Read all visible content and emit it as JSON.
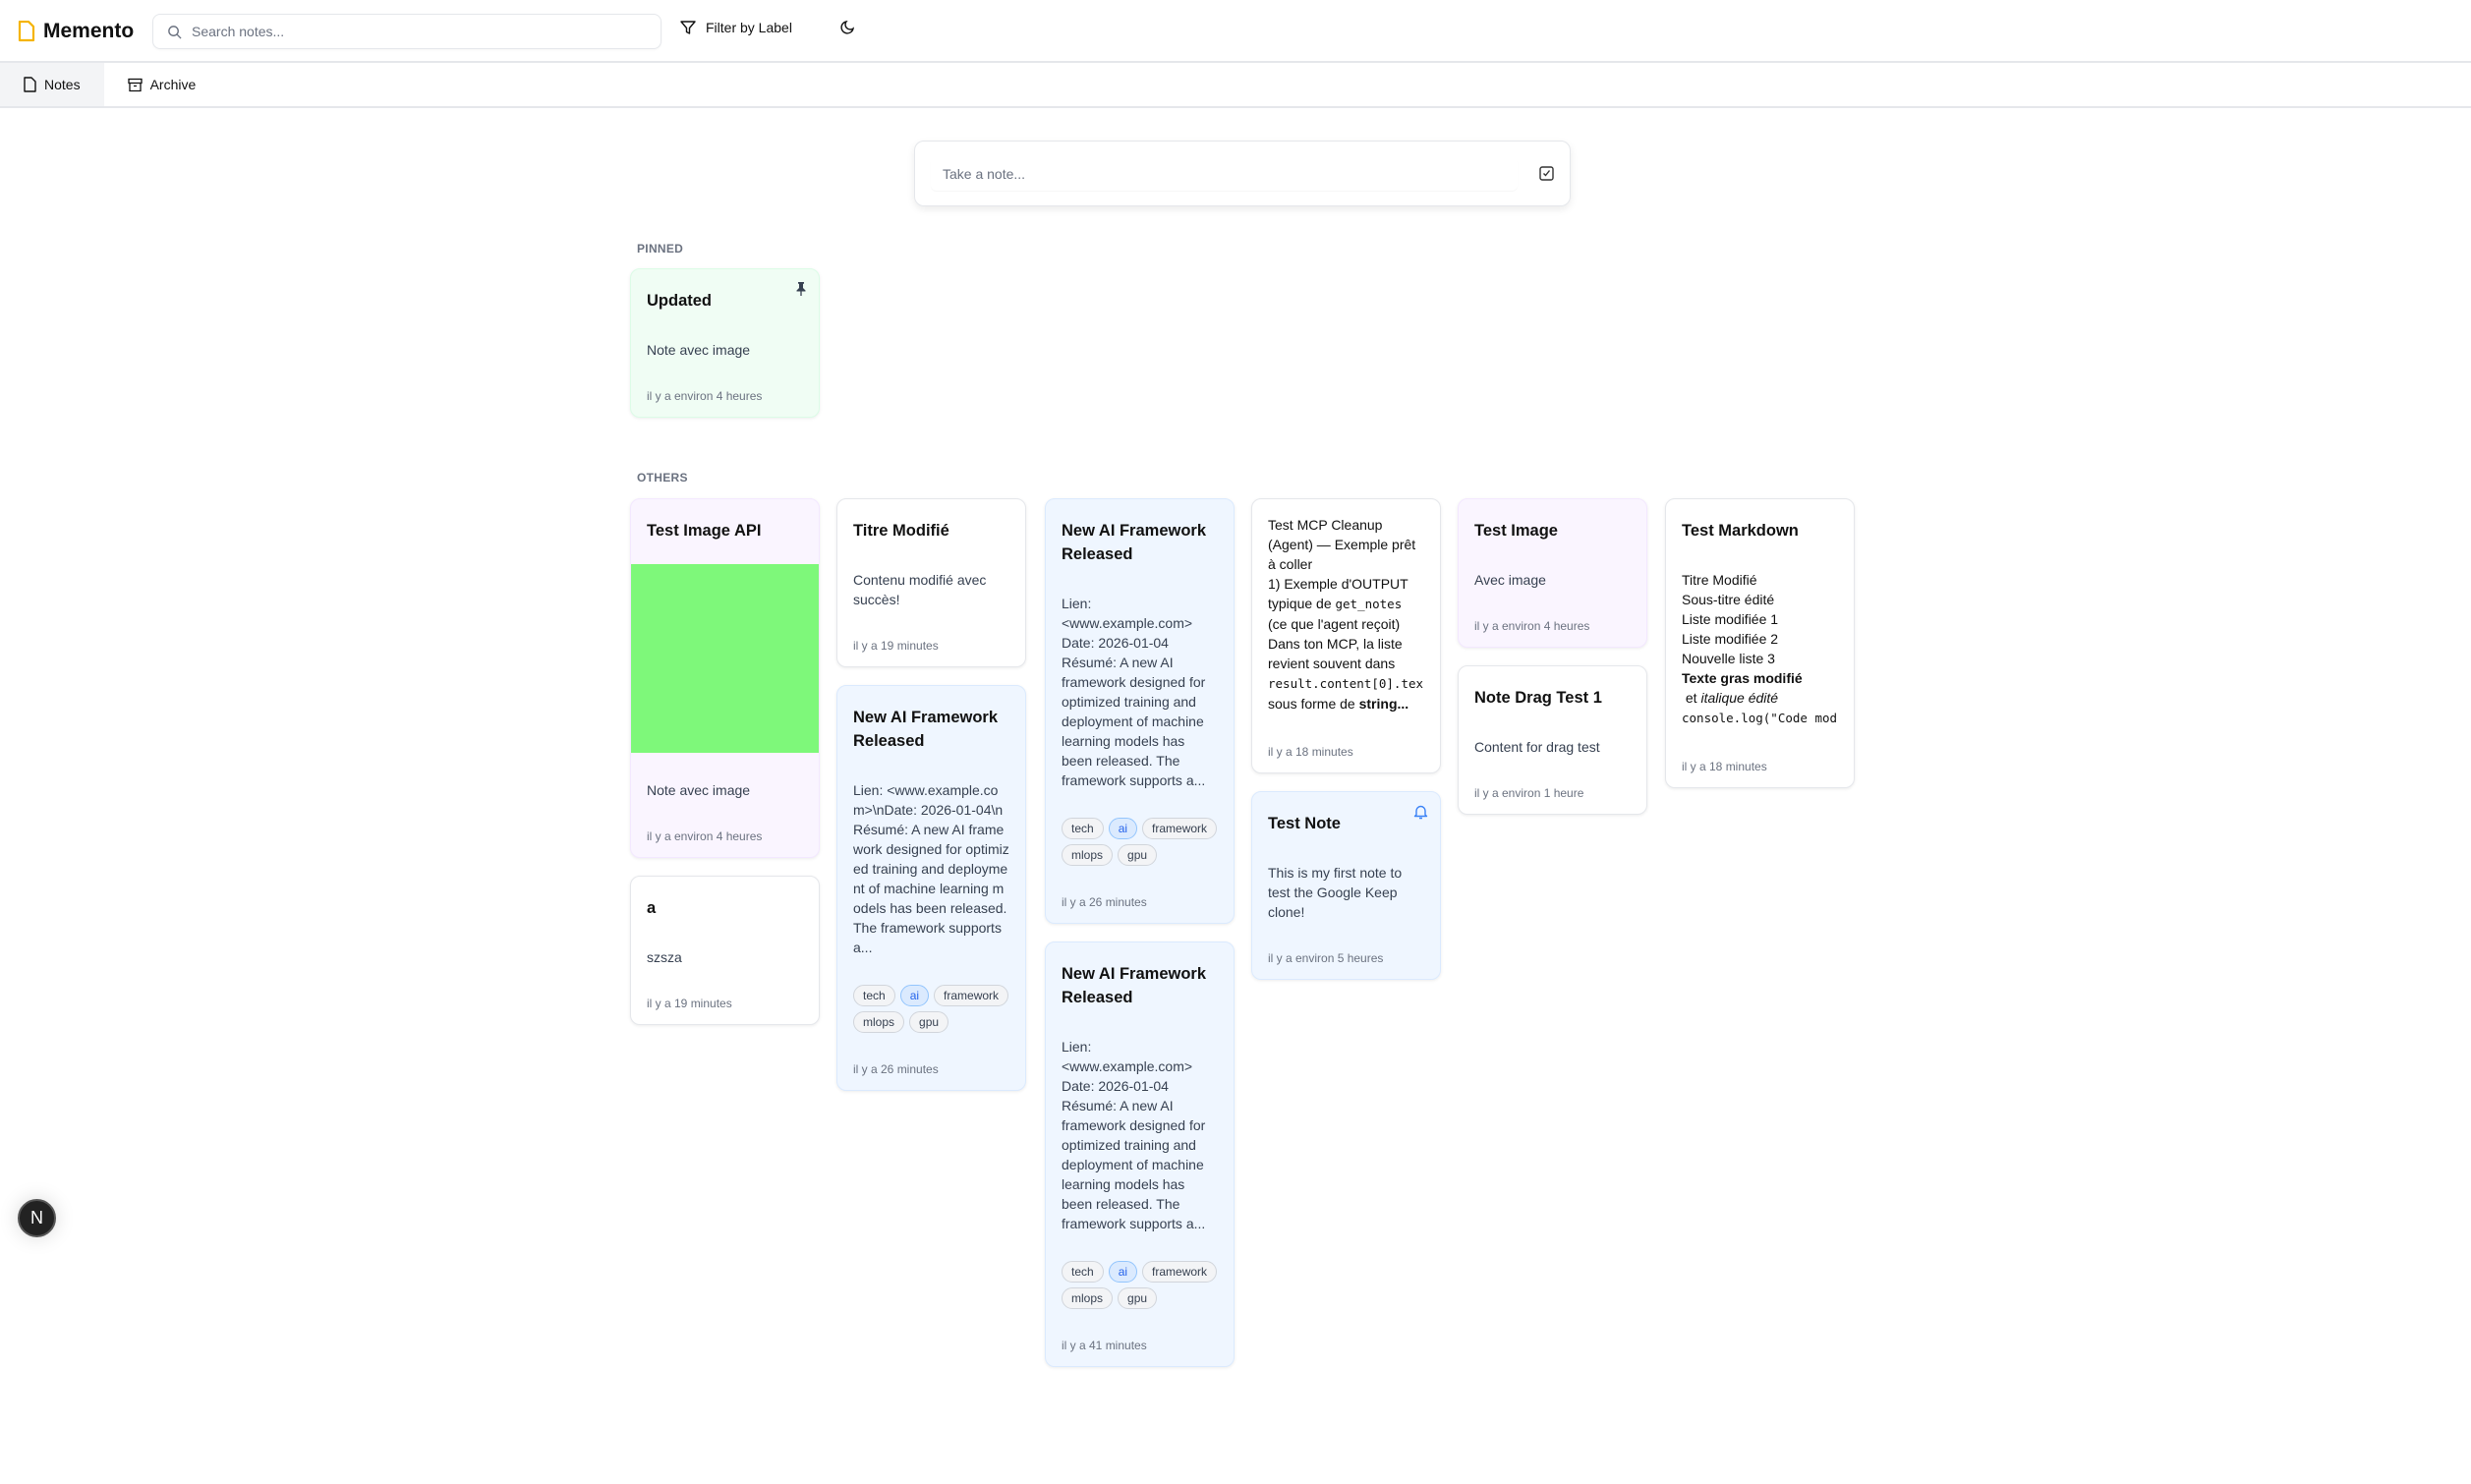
{
  "app": {
    "name": "Memento",
    "brand_color": "#f5b400"
  },
  "header": {
    "search_placeholder": "Search notes...",
    "filter_label": "Filter by Label"
  },
  "tabs": [
    {
      "label": "Notes",
      "active": true
    },
    {
      "label": "Archive",
      "active": false
    }
  ],
  "composer": {
    "placeholder": "Take a note..."
  },
  "sections": {
    "pinned": "PINNED",
    "others": "OTHERS"
  },
  "pinned": [
    {
      "title": "Updated",
      "body": "Note avec image",
      "date": "il y a environ 4 heures",
      "color": "#f0fdf4",
      "icon": "pin-icon"
    }
  ],
  "others": {
    "test_image_api": {
      "title": "Test Image API",
      "image_color": "#7ef87a",
      "body": "Note avec image",
      "date": "il y a environ 4 heures"
    },
    "a": {
      "title": "a",
      "body": "szsza",
      "date": "il y a 19 minutes"
    },
    "titre_modifie": {
      "title": "Titre Modifié",
      "body": "Contenu modifié avec succès!",
      "date": "il y a 19 minutes"
    },
    "new_ai_1": {
      "title": "New AI Framework Released",
      "body": "Lien: <www.example.com>\\nDate: 2026-01-04\\nRésumé: A new AI framework designed for optimized training and deployment of machine learning models has been released. The framework supports a...",
      "tags": [
        "tech",
        "ai",
        "framework",
        "mlops",
        "gpu"
      ],
      "date": "il y a 26 minutes"
    },
    "new_ai_2": {
      "title": "New AI Framework Released",
      "body": "Lien:\n<www.example.com>\nDate: 2026-01-04\nRésumé: A new AI framework designed for optimized training and deployment of machine learning models has been released. The framework supports a...",
      "tags": [
        "tech",
        "ai",
        "framework",
        "mlops",
        "gpu"
      ],
      "date": "il y a 26 minutes"
    },
    "new_ai_3": {
      "title": "New AI Framework Released",
      "body": "Lien:\n<www.example.com>\nDate: 2026-01-04\nRésumé: A new AI framework designed for optimized training and deployment of machine learning models has been released. The framework supports a...",
      "tags": [
        "tech",
        "ai",
        "framework",
        "mlops",
        "gpu"
      ],
      "date": "il y a 41 minutes"
    },
    "mcp": {
      "line1": "Test MCP Cleanup (Agent) — Exemple prêt à coller",
      "line2a": "1) Exemple d'OUTPUT typique de ",
      "code1": "get_notes",
      "line2b": " (ce que l'agent reçoit)",
      "line3": "Dans ton MCP, la liste revient souvent dans ",
      "code2": "result.content[0].tex",
      "line4": "sous forme de ",
      "bold": "string...",
      "date": "il y a 18 minutes"
    },
    "test_note": {
      "title": "Test Note",
      "body": "This is my first note to test the Google Keep clone!",
      "date": "il y a environ 5 heures",
      "icon": "bell-icon",
      "accent": "#3b82f6"
    },
    "test_image": {
      "title": "Test Image",
      "body": "Avec image",
      "date": "il y a environ 4 heures"
    },
    "drag": {
      "title": "Note Drag Test 1",
      "body": "Content for drag test",
      "date": "il y a environ 1 heure"
    },
    "markdown": {
      "title": "Test Markdown",
      "lines": [
        "Titre Modifié",
        "Sous-titre édité",
        "Liste modifiée 1",
        "Liste modifiée 2",
        "Nouvelle liste 3"
      ],
      "bold": "Texte gras modifié",
      "mid": " et ",
      "italic": "italique édité",
      "code": "console.log(\"Code mod",
      "date": "il y a 18 minutes"
    }
  },
  "fab": {
    "label": "N"
  }
}
